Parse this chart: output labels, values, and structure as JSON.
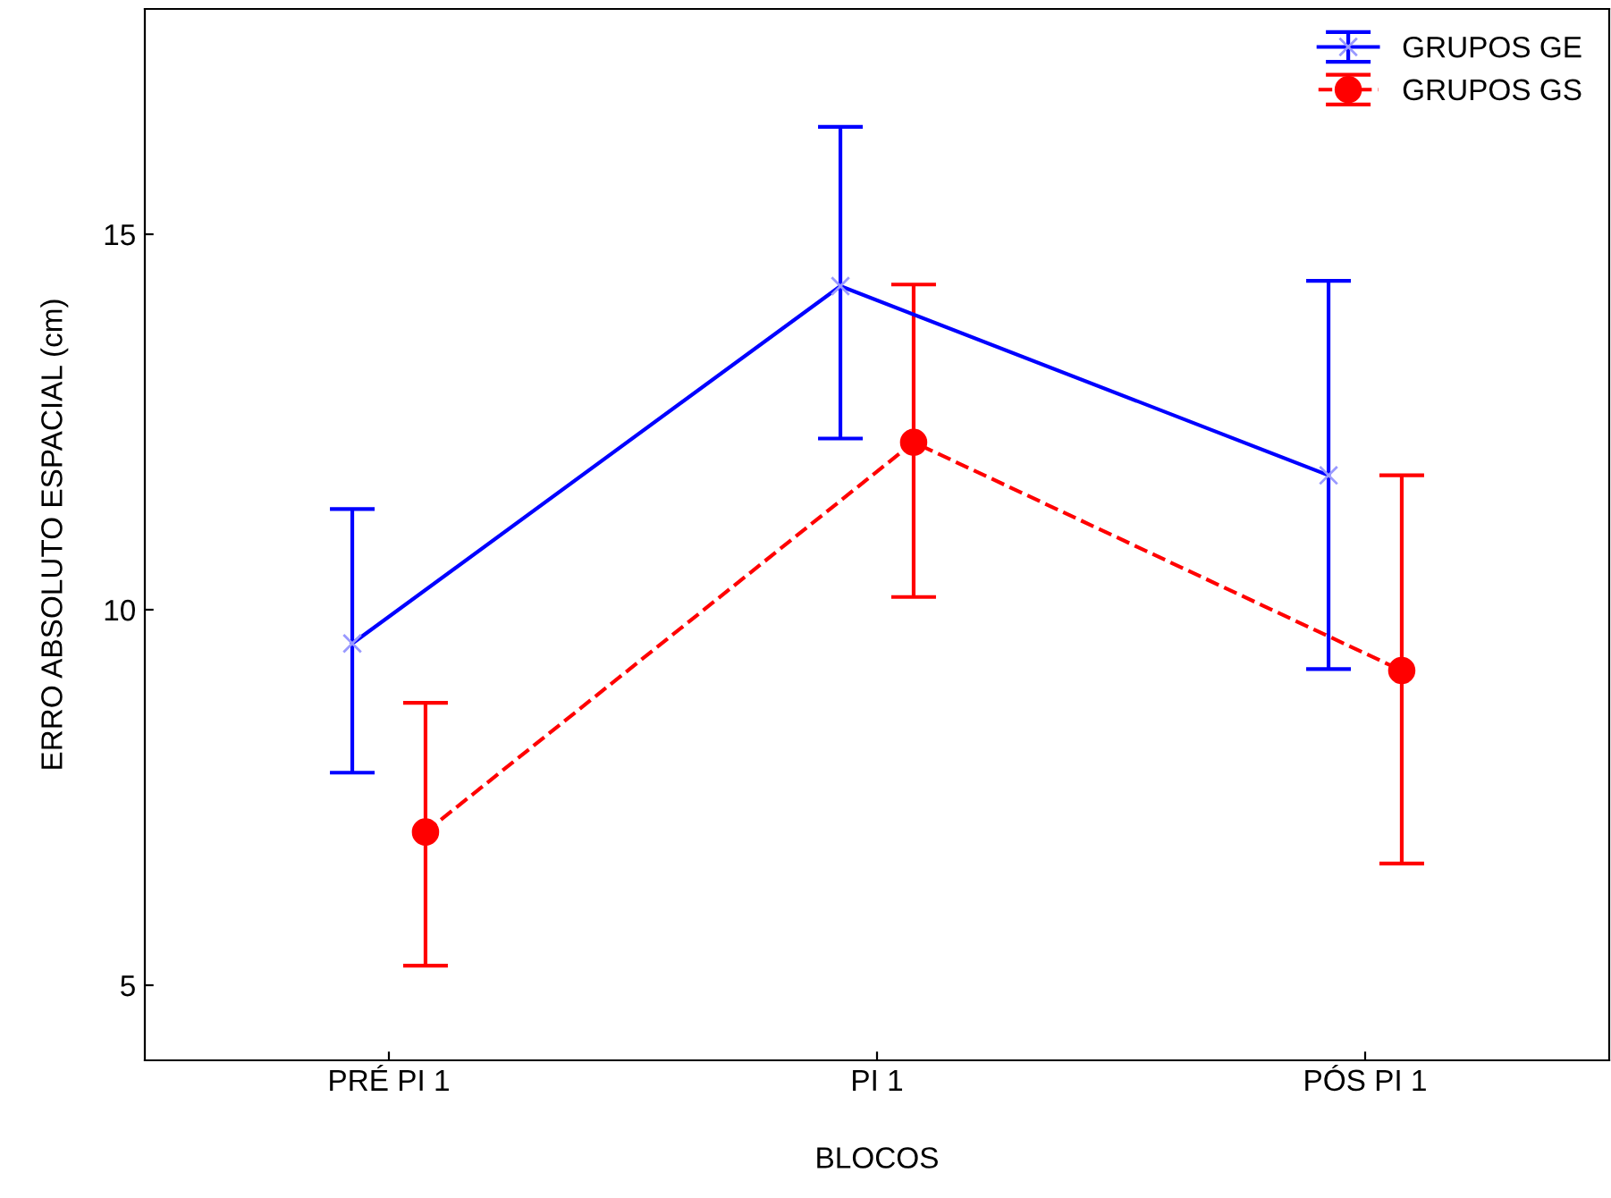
{
  "chart_data": {
    "type": "line",
    "xlabel": "BLOCOS",
    "ylabel": "ERRO ABSOLUTO ESPACIAL (cm)",
    "categories": [
      "PRÉ PI 1",
      "PI 1",
      "PÓS PI 1"
    ],
    "series": [
      {
        "name": "GRUPOS GE",
        "color": "#0000ff",
        "values": [
          9.55,
          14.31,
          11.79
        ],
        "errors": [
          [
            7.83,
            11.34
          ],
          [
            12.28,
            16.43
          ],
          [
            9.21,
            14.38
          ]
        ],
        "marker": "cross",
        "line_style": "solid"
      },
      {
        "name": "GRUPOS GS",
        "color": "#ff0000",
        "values": [
          7.04,
          12.23,
          9.19
        ],
        "errors": [
          [
            5.26,
            8.76
          ],
          [
            10.17,
            14.33
          ],
          [
            6.62,
            11.79
          ]
        ],
        "marker": "circle",
        "line_style": "dashed"
      }
    ],
    "ylim": [
      4,
      18
    ],
    "yticks": [
      5,
      10,
      15
    ],
    "grid": false,
    "legend": "top right"
  }
}
